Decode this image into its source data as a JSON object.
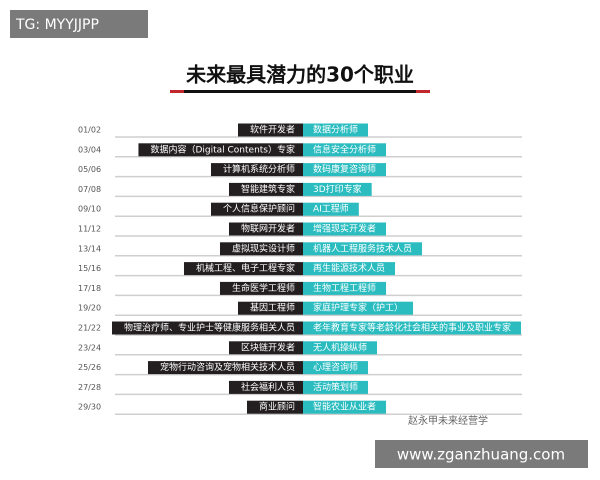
{
  "header": {
    "title": "未来最具潜力的30个职业"
  },
  "watermarks": {
    "top_left": "TG: MYYJJPP",
    "bottom_right": "www.zganzhuang.com",
    "account": "赵永甲未来经营学"
  },
  "rows": [
    {
      "number": "01/02",
      "left": "软件开发者",
      "right": "数据分析师"
    },
    {
      "number": "03/04",
      "left": "数据内容（Digital Contents）专家",
      "right": "信息安全分析师"
    },
    {
      "number": "05/06",
      "left": "计算机系统分析师",
      "right": "数码康复咨询师"
    },
    {
      "number": "07/08",
      "left": "智能建筑专家",
      "right": "3D打印专家"
    },
    {
      "number": "09/10",
      "left": "个人信息保护顾问",
      "right": "AI工程师"
    },
    {
      "number": "11/12",
      "left": "物联网开发者",
      "right": "增强现实开发者"
    },
    {
      "number": "13/14",
      "left": "虚拟现实设计师",
      "right": "机器人工程服务技术人员"
    },
    {
      "number": "15/16",
      "left": "机械工程、电子工程专家",
      "right": "再生能源技术人员"
    },
    {
      "number": "17/18",
      "left": "生命医学工程师",
      "right": "生物工程工程师"
    },
    {
      "number": "19/20",
      "left": "基因工程师",
      "right": "家庭护理专家（护工）"
    },
    {
      "number": "21/22",
      "left": "物理治疗师、专业护士等健康服务相关人员",
      "right": "老年教育专家等老龄化社会相关的事业及职业专家"
    },
    {
      "number": "23/24",
      "left": "区块链开发者",
      "right": "无人机操纵师"
    },
    {
      "number": "25/26",
      "left": "宠物行动咨询及宠物相关技术人员",
      "right": "心理咨询师"
    },
    {
      "number": "27/28",
      "left": "社会福利人员",
      "right": "活动策划师"
    },
    {
      "number": "29/30",
      "left": "商业顾问",
      "right": "智能农业从业者"
    }
  ]
}
